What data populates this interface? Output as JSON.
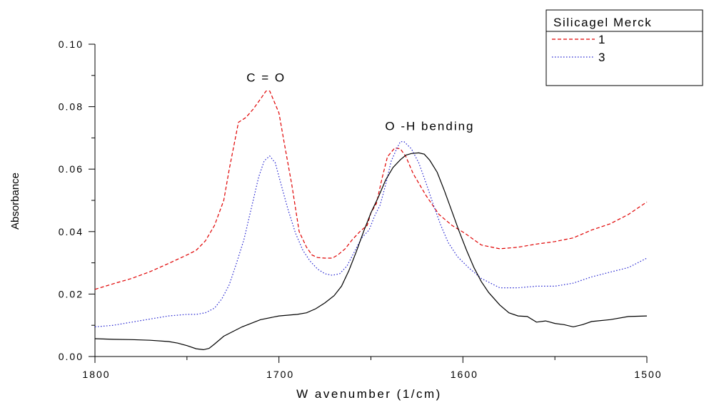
{
  "chart_data": {
    "type": "line",
    "xlabel": "W avenumber (1/cm)",
    "ylabel": "Absorbance",
    "xlim": [
      1800,
      1500
    ],
    "ylim": [
      0,
      0.1
    ],
    "x_ticks": [
      1800,
      1700,
      1600,
      1500
    ],
    "x_tick_labels": [
      "1800",
      "1700",
      "1600",
      "1500"
    ],
    "y_ticks": [
      0,
      0.02,
      0.04,
      0.06,
      0.08,
      0.1
    ],
    "y_tick_labels": [
      "0.00",
      "0.02",
      "0.04",
      "0.06",
      "0.08",
      "0.10"
    ],
    "grid": false,
    "legend": {
      "title": "Silicagel Merck",
      "placement": "top-right",
      "entries": [
        "1",
        "3"
      ]
    },
    "annotations": [
      {
        "text": "C = O",
        "x": 1707,
        "y": 0.088
      },
      {
        "text": "O -H  bending",
        "x": 1618,
        "y": 0.0725
      }
    ],
    "series": [
      {
        "name": "1",
        "color": "#e00000",
        "style": "dashed",
        "x": [
          1800,
          1790,
          1780,
          1770,
          1760,
          1750,
          1745,
          1740,
          1735,
          1730,
          1727,
          1722,
          1718,
          1714,
          1710,
          1707,
          1705,
          1700,
          1697,
          1693,
          1689,
          1685,
          1682,
          1679,
          1675,
          1671,
          1668,
          1664,
          1660,
          1656,
          1652,
          1650,
          1647,
          1644,
          1641,
          1637,
          1634,
          1631,
          1627,
          1620,
          1613,
          1606,
          1599,
          1590,
          1580,
          1570,
          1560,
          1550,
          1540,
          1530,
          1520,
          1510,
          1500
        ],
        "y": [
          0.0215,
          0.0233,
          0.025,
          0.0272,
          0.0298,
          0.0325,
          0.034,
          0.037,
          0.042,
          0.05,
          0.06,
          0.075,
          0.0765,
          0.0792,
          0.0825,
          0.085,
          0.085,
          0.078,
          0.068,
          0.055,
          0.04,
          0.035,
          0.0325,
          0.0317,
          0.0315,
          0.0315,
          0.0325,
          0.0345,
          0.0375,
          0.04,
          0.042,
          0.046,
          0.049,
          0.057,
          0.064,
          0.0668,
          0.0665,
          0.064,
          0.0585,
          0.0515,
          0.0455,
          0.042,
          0.0395,
          0.0357,
          0.0345,
          0.035,
          0.036,
          0.0368,
          0.038,
          0.0405,
          0.0425,
          0.0455,
          0.0495
        ]
      },
      {
        "name": "3",
        "color": "#2020d0",
        "style": "dotted",
        "x": [
          1800,
          1790,
          1780,
          1770,
          1760,
          1750,
          1745,
          1740,
          1735,
          1731,
          1727,
          1723,
          1719,
          1715,
          1711,
          1708,
          1705,
          1702,
          1699,
          1695,
          1691,
          1687,
          1683,
          1679,
          1675,
          1671,
          1667,
          1663,
          1659,
          1655,
          1651,
          1648,
          1645,
          1642,
          1639,
          1636,
          1634,
          1632,
          1628,
          1624,
          1620,
          1616,
          1612,
          1608,
          1603,
          1597,
          1590,
          1580,
          1570,
          1560,
          1550,
          1540,
          1530,
          1520,
          1510,
          1500
        ],
        "y": [
          0.0095,
          0.01,
          0.011,
          0.012,
          0.013,
          0.0135,
          0.0135,
          0.014,
          0.0155,
          0.0185,
          0.023,
          0.03,
          0.0375,
          0.0475,
          0.0575,
          0.0627,
          0.0642,
          0.062,
          0.0555,
          0.047,
          0.0395,
          0.034,
          0.0305,
          0.028,
          0.0265,
          0.026,
          0.0265,
          0.029,
          0.0335,
          0.038,
          0.0405,
          0.045,
          0.0485,
          0.055,
          0.0625,
          0.0665,
          0.0688,
          0.0688,
          0.0665,
          0.062,
          0.0555,
          0.0485,
          0.042,
          0.0365,
          0.032,
          0.0285,
          0.025,
          0.022,
          0.022,
          0.0225,
          0.0225,
          0.0235,
          0.0255,
          0.027,
          0.0285,
          0.0315
        ]
      },
      {
        "name": "",
        "color": "#000000",
        "style": "solid",
        "x": [
          1800,
          1790,
          1780,
          1770,
          1760,
          1755,
          1750,
          1745,
          1741,
          1738,
          1735,
          1730,
          1720,
          1710,
          1700,
          1690,
          1685,
          1680,
          1675,
          1670,
          1666,
          1662,
          1658,
          1654,
          1650,
          1646,
          1642,
          1638,
          1634,
          1631,
          1628,
          1624,
          1621,
          1618,
          1614,
          1610,
          1606,
          1602,
          1598,
          1594,
          1590,
          1586,
          1580,
          1575,
          1570,
          1565,
          1560,
          1555,
          1550,
          1545,
          1540,
          1535,
          1530,
          1520,
          1510,
          1500
        ],
        "y": [
          0.0057,
          0.0055,
          0.0054,
          0.0052,
          0.0048,
          0.0043,
          0.0035,
          0.0025,
          0.0022,
          0.0026,
          0.004,
          0.0065,
          0.0095,
          0.0118,
          0.013,
          0.0135,
          0.014,
          0.0153,
          0.0172,
          0.0195,
          0.0225,
          0.0275,
          0.0335,
          0.04,
          0.046,
          0.051,
          0.0565,
          0.0605,
          0.063,
          0.0645,
          0.065,
          0.0652,
          0.0648,
          0.0628,
          0.059,
          0.053,
          0.0465,
          0.04,
          0.034,
          0.0285,
          0.024,
          0.0205,
          0.0165,
          0.014,
          0.013,
          0.0128,
          0.011,
          0.0114,
          0.0106,
          0.0102,
          0.0095,
          0.0102,
          0.0112,
          0.0118,
          0.0128,
          0.013
        ]
      }
    ]
  }
}
